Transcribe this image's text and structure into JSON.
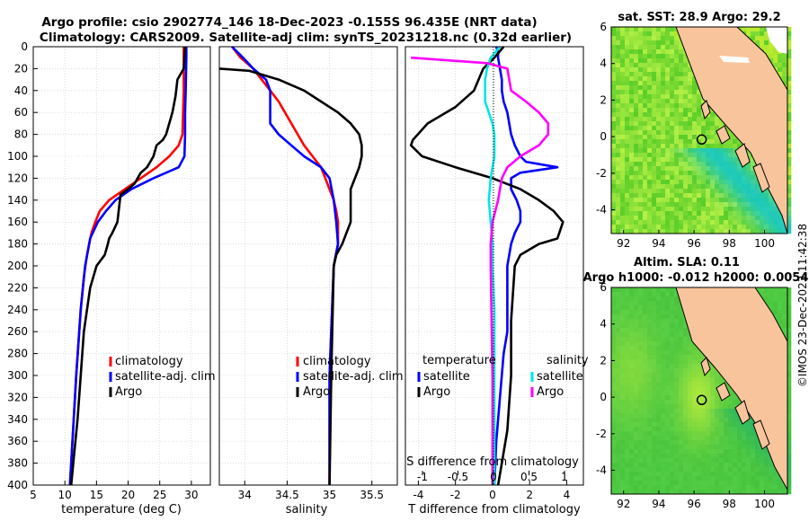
{
  "header": {
    "title_line1": "Argo profile: csio 2902774_146 18-Dec-2023 -0.155S 96.435E (NRT data)",
    "title_line2": "Climatology: CARS2009. Satellite-adj clim: synTS_20231218.nc (0.32d earlier)"
  },
  "timestamp": "©IMOS 23-Dec-2023 11:42:38",
  "colors": {
    "climatology": "#ff0000",
    "satellite": "#0000ff",
    "argo": "#000000",
    "salinity": "#ff00ff",
    "sat_salinity": "#00e5e5",
    "land": "#f8c49c"
  },
  "chart_data": [
    {
      "type": "line",
      "title": "",
      "xlabel": "temperature (deg C)",
      "ylabel": "",
      "xlim": [
        5,
        33
      ],
      "ylim": [
        400,
        0
      ],
      "xticks": [
        "5",
        "10",
        "15",
        "20",
        "25",
        "30"
      ],
      "yticks": [
        "0",
        "20",
        "40",
        "60",
        "80",
        "100",
        "120",
        "140",
        "160",
        "180",
        "200",
        "220",
        "240",
        "260",
        "280",
        "300",
        "320",
        "340",
        "360",
        "380",
        "400"
      ],
      "legend": [
        "climatology",
        "satellite-adj. clim",
        "Argo"
      ],
      "series": [
        {
          "name": "climatology",
          "color": "#ff0000",
          "x": [
            28.8,
            28.8,
            28.8,
            28.7,
            28.6,
            28.0,
            26.5,
            24.5,
            22.0,
            19.5,
            17.0,
            15.5,
            14.8,
            14.2,
            13.5,
            13.0,
            12.5,
            11.8,
            11.2,
            10.8
          ],
          "y": [
            0,
            10,
            40,
            60,
            80,
            90,
            100,
            110,
            120,
            130,
            140,
            150,
            160,
            170,
            190,
            210,
            240,
            300,
            360,
            400
          ]
        },
        {
          "name": "satellite-adj. clim",
          "color": "#0000ff",
          "x": [
            29.2,
            29.2,
            29.1,
            29.0,
            29.0,
            28.9,
            28.0,
            24.0,
            20.5,
            18.0,
            16.5,
            15.2,
            14.0,
            13.2,
            12.5,
            11.8,
            11.2,
            10.8
          ],
          "y": [
            0,
            10,
            40,
            60,
            80,
            100,
            110,
            120,
            130,
            140,
            150,
            160,
            175,
            200,
            240,
            300,
            360,
            400
          ]
        },
        {
          "name": "Argo",
          "color": "#000000",
          "x": [
            29.0,
            28.8,
            27.8,
            27.5,
            27.0,
            26.5,
            26.0,
            25.5,
            24.5,
            24.0,
            23.5,
            23.0,
            22.0,
            21.0,
            20.0,
            18.8,
            18.5,
            18.3,
            17.5,
            17.0,
            16.8,
            16.3,
            15.0,
            14.0,
            13.5,
            13.0,
            12.5,
            12.0,
            11.5,
            11.0
          ],
          "y": [
            0,
            20,
            30,
            45,
            60,
            70,
            80,
            85,
            90,
            100,
            105,
            110,
            115,
            125,
            130,
            135,
            150,
            160,
            170,
            175,
            180,
            190,
            200,
            220,
            240,
            260,
            300,
            340,
            370,
            400
          ]
        }
      ]
    },
    {
      "type": "line",
      "title": "",
      "xlabel": "salinity",
      "ylabel": "",
      "xlim": [
        33.7,
        35.8
      ],
      "ylim": [
        400,
        0
      ],
      "xticks": [
        "34",
        "34.5",
        "35",
        "35.5"
      ],
      "legend": [
        "climatology",
        "satellite-adj. clim",
        "Argo"
      ],
      "series": [
        {
          "name": "climatology",
          "color": "#ff0000",
          "x": [
            33.85,
            33.95,
            34.1,
            34.2,
            34.3,
            34.4,
            34.55,
            34.7,
            34.8,
            34.9,
            34.95,
            35.0,
            35.05,
            35.08,
            35.1,
            35.1,
            35.05,
            35.0,
            35.0
          ],
          "y": [
            0,
            10,
            20,
            30,
            40,
            50,
            70,
            90,
            100,
            110,
            120,
            130,
            140,
            150,
            160,
            180,
            200,
            300,
            400
          ]
        },
        {
          "name": "satellite-adj. clim",
          "color": "#0000ff",
          "x": [
            33.85,
            33.98,
            34.1,
            34.25,
            34.3,
            34.3,
            34.4,
            34.55,
            34.7,
            34.9,
            35.0,
            35.05,
            35.08,
            35.1,
            35.05,
            35.0,
            35.0
          ],
          "y": [
            0,
            10,
            20,
            30,
            40,
            70,
            80,
            90,
            100,
            110,
            120,
            140,
            160,
            180,
            200,
            300,
            400
          ]
        },
        {
          "name": "Argo",
          "color": "#000000",
          "x": [
            33.7,
            34.05,
            34.4,
            34.7,
            34.9,
            35.1,
            35.25,
            35.35,
            35.38,
            35.38,
            35.35,
            35.3,
            35.25,
            35.25,
            35.25,
            35.2,
            35.15,
            35.08,
            35.05,
            35.02,
            35.0
          ],
          "y": [
            20,
            22,
            30,
            40,
            50,
            60,
            70,
            80,
            90,
            100,
            110,
            120,
            130,
            140,
            160,
            170,
            180,
            190,
            200,
            300,
            400
          ]
        }
      ]
    },
    {
      "type": "line",
      "title": "",
      "xlabel": "T difference from climatology",
      "xlabel_top": "S difference from climatology",
      "ylabel": "",
      "xlim": [
        -4.7,
        4.9
      ],
      "ylim": [
        400,
        0
      ],
      "xticks": [
        "-4",
        "-2",
        "0",
        "2",
        "4"
      ],
      "xticks_top": [
        "-1",
        "-0.5",
        "0",
        "0.5",
        "1"
      ],
      "legend_title_t": "temperature",
      "legend_title_s": "salinity",
      "legend": [
        "satellite",
        "Argo",
        "satellite",
        "Argo"
      ],
      "series": [
        {
          "name": "T satellite",
          "color": "#0000ff",
          "x": [
            0.2,
            0.3,
            0.3,
            0.4,
            0.5,
            0.5,
            0.6,
            0.8,
            1.0,
            1.2,
            1.5,
            1.8,
            3.5,
            1.5,
            1.0,
            1.0,
            1.3,
            1.5,
            1.5,
            1.2,
            1.0,
            0.9,
            0.8,
            0.8,
            0.6,
            0.4,
            0.2,
            0.1
          ],
          "y": [
            0,
            5,
            10,
            20,
            30,
            40,
            50,
            60,
            80,
            90,
            100,
            105,
            110,
            115,
            120,
            130,
            140,
            150,
            160,
            170,
            180,
            190,
            200,
            260,
            280,
            320,
            360,
            400
          ]
        },
        {
          "name": "T Argo",
          "color": "#000000",
          "x": [
            0.6,
            0.1,
            -0.5,
            -1.0,
            -2.0,
            -3.5,
            -4.3,
            -4.4,
            -3.8,
            -2.0,
            0.0,
            1.5,
            2.5,
            3.3,
            3.8,
            3.5,
            2.5,
            1.5,
            1.2,
            1.0,
            1.0,
            0.8,
            0.5,
            0.3
          ],
          "y": [
            0,
            10,
            20,
            40,
            55,
            70,
            85,
            90,
            100,
            110,
            120,
            130,
            140,
            150,
            160,
            175,
            180,
            190,
            200,
            250,
            300,
            350,
            380,
            400
          ]
        },
        {
          "name": "S satellite",
          "color": "#00e5e5",
          "x": [
            0.4,
            -0.1,
            -0.3,
            -0.4,
            -0.4,
            -0.2,
            0.0,
            0.1,
            0.1,
            0.0,
            -0.1,
            -0.2,
            -0.1,
            0.0,
            0.0,
            0.1,
            0.1,
            0.1,
            0.1
          ],
          "y": [
            0,
            10,
            20,
            30,
            50,
            60,
            70,
            80,
            100,
            110,
            120,
            140,
            160,
            180,
            200,
            240,
            300,
            360,
            400
          ]
        },
        {
          "name": "S Argo",
          "color": "#ff00ff",
          "x": [
            -4.4,
            -0.3,
            0.8,
            0.9,
            1.0,
            1.8,
            2.5,
            3.0,
            3.0,
            2.5,
            1.5,
            0.8,
            0.5,
            0.3,
            0.0,
            -0.1,
            -0.1,
            0.0,
            0.0
          ],
          "y": [
            10,
            15,
            20,
            30,
            40,
            50,
            60,
            70,
            80,
            90,
            100,
            110,
            120,
            140,
            160,
            180,
            200,
            300,
            400
          ]
        }
      ]
    },
    {
      "type": "heatmap",
      "title": "sat. SST: 28.9 Argo: 29.2",
      "xticks": [
        "92",
        "94",
        "96",
        "98",
        "100"
      ],
      "yticks": [
        "6",
        "4",
        "2",
        "0",
        "-2",
        "-4"
      ],
      "xlim": [
        91.3,
        101.3
      ],
      "ylim": [
        -5.3,
        6.0
      ],
      "argo_position": {
        "lon": 96.435,
        "lat": -0.155
      }
    },
    {
      "type": "heatmap",
      "title_line1": "Altim. SLA: 0.11",
      "title_line2": "Argo h1000: -0.012 h2000: 0.0054",
      "xticks": [
        "92",
        "94",
        "96",
        "98",
        "100"
      ],
      "yticks": [
        "6",
        "4",
        "2",
        "0",
        "-2",
        "-4"
      ],
      "xlim": [
        91.3,
        101.3
      ],
      "ylim": [
        -5.3,
        6.0
      ],
      "argo_position": {
        "lon": 96.435,
        "lat": -0.155
      }
    }
  ]
}
